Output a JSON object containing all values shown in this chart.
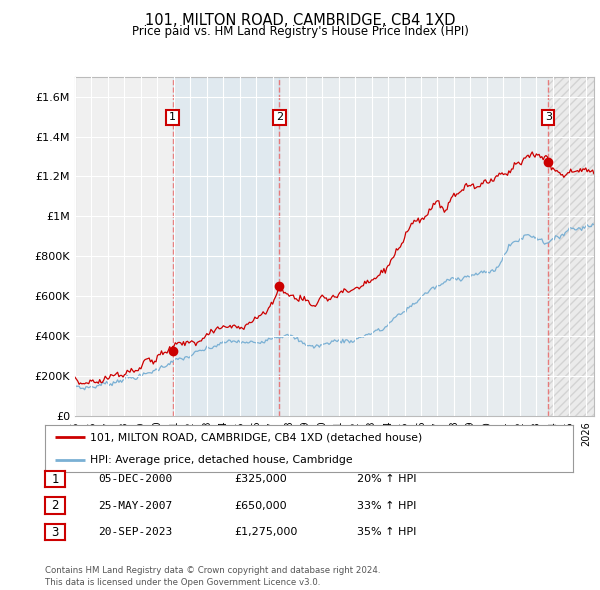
{
  "title": "101, MILTON ROAD, CAMBRIDGE, CB4 1XD",
  "subtitle": "Price paid vs. HM Land Registry's House Price Index (HPI)",
  "ylabel_ticks": [
    "£0",
    "£200K",
    "£400K",
    "£600K",
    "£800K",
    "£1M",
    "£1.2M",
    "£1.4M",
    "£1.6M"
  ],
  "ytick_values": [
    0,
    200000,
    400000,
    600000,
    800000,
    1000000,
    1200000,
    1400000,
    1600000
  ],
  "ylim": [
    0,
    1700000
  ],
  "xlim_start": 1995.0,
  "xlim_end": 2026.5,
  "sale_dates": [
    2000.92,
    2007.4,
    2023.72
  ],
  "sale_prices": [
    325000,
    650000,
    1275000
  ],
  "sale_labels": [
    "1",
    "2",
    "3"
  ],
  "legend_line1": "101, MILTON ROAD, CAMBRIDGE, CB4 1XD (detached house)",
  "legend_line2": "HPI: Average price, detached house, Cambridge",
  "table_rows": [
    {
      "num": "1",
      "date": "05-DEC-2000",
      "price": "£325,000",
      "change": "20% ↑ HPI"
    },
    {
      "num": "2",
      "date": "25-MAY-2007",
      "price": "£650,000",
      "change": "33% ↑ HPI"
    },
    {
      "num": "3",
      "date": "20-SEP-2023",
      "price": "£1,275,000",
      "change": "35% ↑ HPI"
    }
  ],
  "footer": "Contains HM Land Registry data © Crown copyright and database right 2024.\nThis data is licensed under the Open Government Licence v3.0.",
  "red_color": "#cc0000",
  "blue_color": "#7ab0d4",
  "dashed_red": "#e87070",
  "shade_color": "#ddeeff",
  "background_plot": "#f0f0f0",
  "background_fig": "#ffffff",
  "grid_color": "#ffffff"
}
